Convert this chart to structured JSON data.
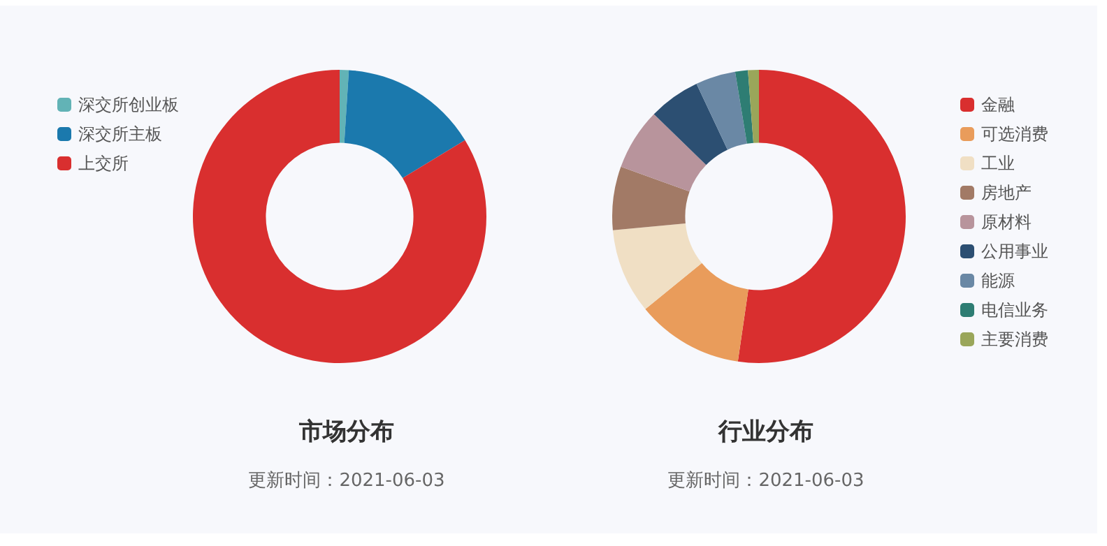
{
  "chart_data": [
    {
      "type": "donut",
      "title": "市场分布",
      "subtitle": "更新时间：2021-06-03",
      "legend": "top left",
      "categories": [
        "深交所创业板",
        "深交所主板",
        "上交所"
      ],
      "values": [
        1,
        15.3,
        83.7
      ],
      "colors": [
        "#62b3b6",
        "#1b79ad",
        "#d92f2f"
      ]
    },
    {
      "type": "donut",
      "title": "行业分布",
      "subtitle": "更新时间：2021-06-03",
      "legend": "right",
      "categories": [
        "金融",
        "可选消费",
        "工业",
        "房地产",
        "原材料",
        "公用事业",
        "能源",
        "电信业务",
        "主要消费"
      ],
      "values": [
        52.3,
        11.8,
        9.4,
        7.0,
        6.8,
        5.7,
        4.4,
        1.4,
        1.2
      ],
      "colors": [
        "#d92f2f",
        "#e99c5b",
        "#f0dfc4",
        "#a27a66",
        "#b8949c",
        "#2c4f72",
        "#6a88a5",
        "#2e7d73",
        "#9aa65a"
      ]
    }
  ]
}
